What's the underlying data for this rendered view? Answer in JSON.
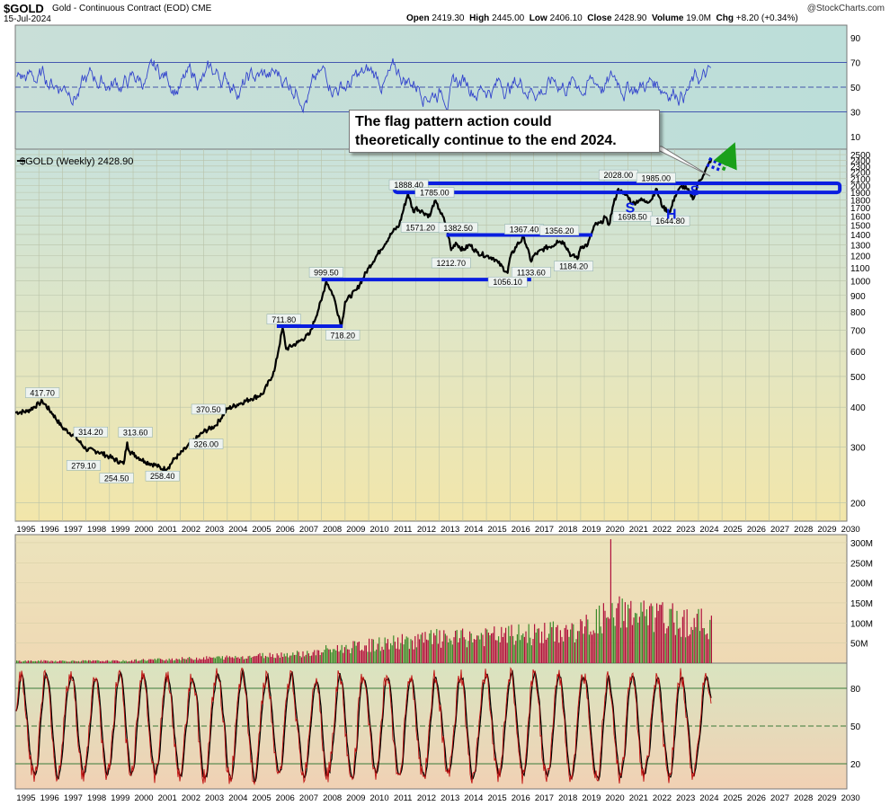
{
  "header": {
    "symbol": "$GOLD",
    "subtitle": "Gold - Continuous Contract (EOD)  CME",
    "date": "15-Jul-2024",
    "ohlc": {
      "open_label": "Open",
      "open": "2419.30",
      "high_label": "High",
      "high": "2445.00",
      "low_label": "Low",
      "low": "2406.10",
      "close_label": "Close",
      "close": "2428.90",
      "volume_label": "Volume",
      "volume": "19.0M",
      "chg_label": "Chg",
      "chg": "+8.20 (+0.34%)"
    },
    "copyright": "@StockCharts.com"
  },
  "annotation": {
    "line1": "The flag pattern action could",
    "line2": "theoretically continue to the end 2024."
  },
  "colors": {
    "price_line": "#000000",
    "rsi_line": "#3344cc",
    "trend_box": "#0a1ee0",
    "arrow": "#1aa01a",
    "volume_down": "#b0103c",
    "volume_up": "#3a8a2a",
    "stoch_line": "#c01010",
    "stoch_signal": "#000000"
  },
  "chart_data": [
    {
      "type": "line",
      "panel": "rsi",
      "y_ticks": [
        "90",
        "70",
        "50",
        "30",
        "10"
      ],
      "ylim": [
        0,
        100
      ],
      "levels": [
        70,
        50,
        30
      ]
    },
    {
      "type": "line",
      "panel": "price",
      "legend": "$GOLD (Weekly) 2428.90",
      "x_ticks": [
        "1995",
        "1996",
        "1997",
        "1998",
        "1999",
        "2000",
        "2001",
        "2002",
        "2003",
        "2004",
        "2005",
        "2006",
        "2007",
        "2008",
        "2009",
        "2010",
        "2011",
        "2012",
        "2013",
        "2014",
        "2015",
        "2016",
        "2017",
        "2018",
        "2019",
        "2020",
        "2021",
        "2022",
        "2023",
        "2024",
        "2025",
        "2026",
        "2027",
        "2028",
        "2029",
        "2030"
      ],
      "xlim": [
        1995,
        2030.3
      ],
      "y_ticks": [
        "2500",
        "2400",
        "2300",
        "2200",
        "2100",
        "2000",
        "1900",
        "1800",
        "1700",
        "1600",
        "1500",
        "1400",
        "1300",
        "1200",
        "1100",
        "1000",
        "900",
        "800",
        "700",
        "600",
        "500",
        "400",
        "300",
        "200"
      ],
      "ylim_log": [
        175,
        2600
      ],
      "x": [
        1995.0,
        1995.5,
        1996.0,
        1996.15,
        1996.6,
        1997.0,
        1997.5,
        1998.0,
        1998.5,
        1999.0,
        1999.6,
        1999.75,
        1999.85,
        2000.0,
        2000.5,
        2001.0,
        2001.25,
        2001.5,
        2001.75,
        2002.0,
        2002.5,
        2003.0,
        2003.5,
        2004.0,
        2004.5,
        2005.0,
        2005.5,
        2006.0,
        2006.35,
        2006.5,
        2007.0,
        2007.5,
        2008.0,
        2008.2,
        2008.5,
        2008.85,
        2009.0,
        2009.5,
        2010.0,
        2010.5,
        2011.0,
        2011.3,
        2011.67,
        2011.9,
        2012.0,
        2012.3,
        2012.6,
        2012.8,
        2013.0,
        2013.3,
        2013.5,
        2013.7,
        2014.0,
        2014.3,
        2014.6,
        2015.0,
        2015.3,
        2015.5,
        2015.9,
        2016.0,
        2016.3,
        2016.6,
        2016.9,
        2017.0,
        2017.5,
        2017.9,
        2018.0,
        2018.3,
        2018.6,
        2018.9,
        2019.0,
        2019.3,
        2019.6,
        2019.9,
        2020.0,
        2020.2,
        2020.4,
        2020.6,
        2020.8,
        2021.0,
        2021.2,
        2021.5,
        2021.8,
        2022.0,
        2022.2,
        2022.5,
        2022.8,
        2023.0,
        2023.3,
        2023.5,
        2023.8,
        2024.0,
        2024.2,
        2024.4,
        2024.55
      ],
      "values": [
        385,
        388,
        410,
        417.7,
        380,
        345,
        325,
        295,
        290,
        279.1,
        265,
        310,
        290,
        285,
        270,
        262,
        255,
        258.4,
        275,
        285,
        310,
        335,
        350,
        395,
        410,
        425,
        440,
        520,
        711.8,
        610,
        640,
        680,
        870,
        999.5,
        900,
        718.2,
        860,
        940,
        1100,
        1250,
        1420,
        1500,
        1888.4,
        1650,
        1700,
        1650,
        1600,
        1785,
        1680,
        1500,
        1250,
        1320,
        1250,
        1300,
        1230,
        1200,
        1180,
        1140,
        1060,
        1180,
        1300,
        1367.4,
        1150,
        1200,
        1270,
        1300,
        1340,
        1320,
        1200,
        1184.2,
        1280,
        1300,
        1500,
        1520,
        1600,
        1500,
        1750,
        1950,
        1880,
        1850,
        1750,
        1800,
        1780,
        1800,
        1950,
        1700,
        1650,
        1850,
        1990,
        1950,
        1820,
        2050,
        2150,
        2300,
        2428.9
      ],
      "labels": [
        {
          "text": "417.70",
          "x": 1996.15,
          "y": 417.7
        },
        {
          "text": "279.10",
          "x": 1997.9,
          "y": 279.1
        },
        {
          "text": "314.20",
          "x": 1998.2,
          "y": 314.2
        },
        {
          "text": "254.50",
          "x": 1999.3,
          "y": 254.5
        },
        {
          "text": "313.60",
          "x": 2000.1,
          "y": 313.6
        },
        {
          "text": "258.40",
          "x": 2001.25,
          "y": 258.4
        },
        {
          "text": "370.50",
          "x": 2003.2,
          "y": 370.5
        },
        {
          "text": "326.00",
          "x": 2003.1,
          "y": 326.0
        },
        {
          "text": "711.80",
          "x": 2006.4,
          "y": 711.8
        },
        {
          "text": "718.20",
          "x": 2008.9,
          "y": 718.2
        },
        {
          "text": "999.50",
          "x": 2008.2,
          "y": 999.5
        },
        {
          "text": "1888.40",
          "x": 2011.7,
          "y": 1888.4
        },
        {
          "text": "1785.00",
          "x": 2012.8,
          "y": 1785.0
        },
        {
          "text": "1571.20",
          "x": 2012.2,
          "y": 1571.2
        },
        {
          "text": "1382.50",
          "x": 2013.8,
          "y": 1382.5
        },
        {
          "text": "1212.70",
          "x": 2013.5,
          "y": 1212.7
        },
        {
          "text": "1367.40",
          "x": 2016.6,
          "y": 1367.4
        },
        {
          "text": "1356.20",
          "x": 2018.1,
          "y": 1356.2
        },
        {
          "text": "1133.60",
          "x": 2016.9,
          "y": 1133.6
        },
        {
          "text": "1056.10",
          "x": 2015.9,
          "y": 1056.1
        },
        {
          "text": "1184.20",
          "x": 2018.7,
          "y": 1184.2
        },
        {
          "text": "2028.00",
          "x": 2020.6,
          "y": 2028.0
        },
        {
          "text": "1985.00",
          "x": 2022.2,
          "y": 1985.0
        },
        {
          "text": "1698.50",
          "x": 2021.2,
          "y": 1698.5
        },
        {
          "text": "1644.80",
          "x": 2022.8,
          "y": 1644.8
        }
      ],
      "pattern_letters": [
        {
          "text": "S",
          "x": 2021.1,
          "y": 1640
        },
        {
          "text": "H",
          "x": 2022.85,
          "y": 1570
        },
        {
          "text": "S",
          "x": 2023.85,
          "y": 1860
        }
      ],
      "horizontal_lines": [
        {
          "x1": 2006.1,
          "x2": 2008.9,
          "y": 720
        },
        {
          "x1": 2008.0,
          "x2": 2016.9,
          "y": 1010
        },
        {
          "x1": 2013.3,
          "x2": 2019.5,
          "y": 1395
        }
      ],
      "resistance_box": {
        "x1": 2011.1,
        "x2": 2030.0,
        "y_top": 2030,
        "y_bottom": 1900
      },
      "flag_channel": {
        "upper": [
          [
            2024.45,
            2430
          ],
          [
            2025.0,
            2310
          ]
        ],
        "lower": [
          [
            2024.35,
            2320
          ],
          [
            2024.95,
            2230
          ]
        ]
      },
      "arrow": {
        "from": [
          2025.05,
          2230
        ],
        "to": [
          2025.35,
          2650
        ]
      }
    },
    {
      "type": "bar",
      "panel": "volume",
      "y_ticks": [
        "300M",
        "250M",
        "200M",
        "150M",
        "100M",
        "50M"
      ],
      "ylim": [
        0,
        320
      ],
      "series_note": "weekly volume"
    },
    {
      "type": "line",
      "panel": "stochastic",
      "y_ticks": [
        "80",
        "50",
        "20"
      ],
      "ylim": [
        0,
        100
      ],
      "levels": [
        80,
        50,
        20
      ]
    }
  ]
}
